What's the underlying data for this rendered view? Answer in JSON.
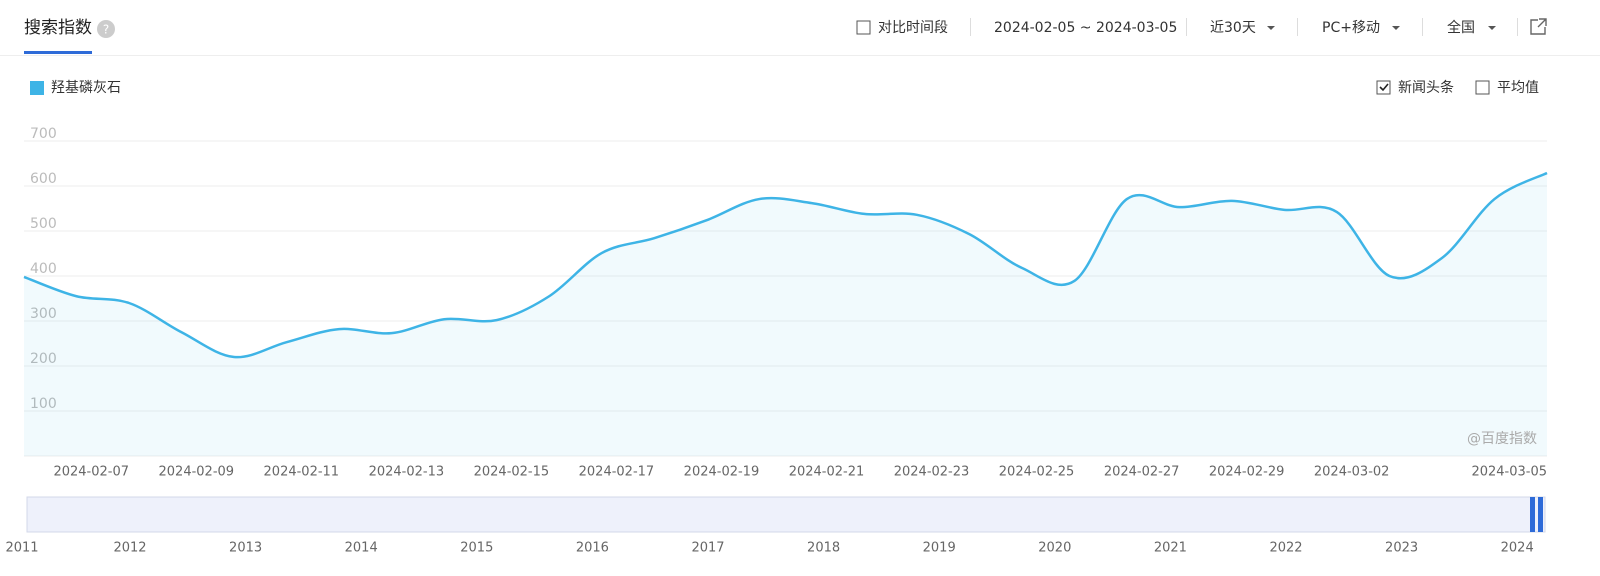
{
  "header": {
    "title": "搜索指数"
  },
  "controls": {
    "compare": "对比时间段",
    "date_range": "2024-02-05 ~ 2024-03-05",
    "period": "近30天",
    "device": "PC+移动",
    "region": "全国"
  },
  "options": {
    "news": "新闻头条",
    "news_checked": true,
    "average": "平均值",
    "average_checked": false
  },
  "watermark": "@百度指数",
  "chart_data": {
    "type": "line",
    "categories": [
      null,
      null,
      "2024-02-07",
      null,
      "2024-02-09",
      null,
      "2024-02-11",
      null,
      "2024-02-13",
      null,
      "2024-02-15",
      null,
      "2024-02-17",
      null,
      "2024-02-19",
      null,
      "2024-02-21",
      null,
      "2024-02-23",
      null,
      "2024-02-25",
      null,
      "2024-02-27",
      null,
      "2024-02-29",
      null,
      "2024-03-02",
      null,
      null,
      "2024-03-05"
    ],
    "series": [
      {
        "name": "羟基磷灰石",
        "color": "#3eb4e6",
        "values": [
          398,
          355,
          340,
          275,
          220,
          253,
          282,
          273,
          304,
          302,
          355,
          451,
          484,
          524,
          571,
          562,
          538,
          536,
          493,
          418,
          389,
          571,
          553,
          567,
          547,
          542,
          400,
          440,
          571,
          629
        ]
      }
    ],
    "ylim": [
      0,
      700
    ],
    "yticks": [
      100,
      200,
      300,
      400,
      500,
      600,
      700
    ],
    "grid": true
  },
  "timeline": {
    "years": [
      "2011",
      "2012",
      "2013",
      "2014",
      "2015",
      "2016",
      "2017",
      "2018",
      "2019",
      "2020",
      "2021",
      "2022",
      "2023",
      "2024"
    ]
  }
}
